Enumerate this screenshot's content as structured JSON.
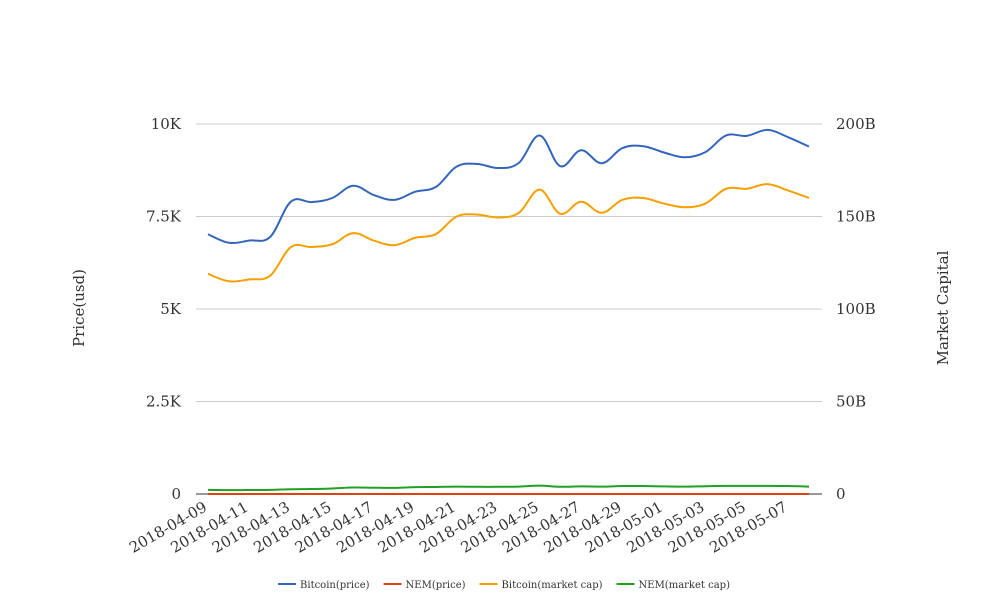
{
  "chart_data": {
    "type": "line",
    "title": "",
    "ylabel_left": "Price(usd)",
    "ylabel_right": "Market Capital",
    "y_left": {
      "ticks": [
        "0",
        "2.5K",
        "5K",
        "7.5K",
        "10K"
      ],
      "range": [
        0,
        10000
      ]
    },
    "y_right": {
      "ticks": [
        "0",
        "50B",
        "100B",
        "150B",
        "200B"
      ],
      "range": [
        0,
        200000000000
      ]
    },
    "x_tick_labels": [
      "2018-04-09",
      "2018-04-11",
      "2018-04-13",
      "2018-04-15",
      "2018-04-17",
      "2018-04-19",
      "2018-04-21",
      "2018-04-23",
      "2018-04-25",
      "2018-04-27",
      "2018-04-29",
      "2018-05-01",
      "2018-05-03",
      "2018-05-05",
      "2018-05-07"
    ],
    "x": [
      "2018-04-09",
      "2018-04-10",
      "2018-04-11",
      "2018-04-12",
      "2018-04-13",
      "2018-04-14",
      "2018-04-15",
      "2018-04-16",
      "2018-04-17",
      "2018-04-18",
      "2018-04-19",
      "2018-04-20",
      "2018-04-21",
      "2018-04-22",
      "2018-04-23",
      "2018-04-24",
      "2018-04-25",
      "2018-04-26",
      "2018-04-27",
      "2018-04-28",
      "2018-04-29",
      "2018-04-30",
      "2018-05-01",
      "2018-05-02",
      "2018-05-03",
      "2018-05-04",
      "2018-05-05",
      "2018-05-06",
      "2018-05-07",
      "2018-05-08"
    ],
    "grid": true,
    "legend_position": "bottom",
    "series": [
      {
        "name": "Bitcoin(price)",
        "axis": "left",
        "color": "#3366bb",
        "values": [
          7020,
          6790,
          6850,
          6950,
          7900,
          7890,
          8000,
          8330,
          8080,
          7950,
          8170,
          8300,
          8850,
          8920,
          8810,
          8950,
          9690,
          8860,
          9290,
          8940,
          9350,
          9400,
          9230,
          9100,
          9240,
          9690,
          9680,
          9840,
          9640,
          9390
        ]
      },
      {
        "name": "NEM(price)",
        "axis": "left",
        "color": "#dd4411",
        "values": [
          0.21,
          0.21,
          0.21,
          0.22,
          0.24,
          0.24,
          0.25,
          0.28,
          0.28,
          0.28,
          0.3,
          0.31,
          0.33,
          0.32,
          0.32,
          0.33,
          0.36,
          0.33,
          0.34,
          0.33,
          0.35,
          0.35,
          0.34,
          0.34,
          0.35,
          0.36,
          0.36,
          0.36,
          0.35,
          0.33
        ]
      },
      {
        "name": "Bitcoin(market cap)",
        "axis": "right",
        "color": "#f5a000",
        "values": [
          119000000000,
          115000000000,
          116000000000,
          118000000000,
          133500000000,
          133500000000,
          135000000000,
          141000000000,
          137000000000,
          134500000000,
          138500000000,
          140500000000,
          150000000000,
          151000000000,
          149500000000,
          152000000000,
          164500000000,
          151500000000,
          158000000000,
          152000000000,
          159000000000,
          160000000000,
          157000000000,
          155000000000,
          157000000000,
          165000000000,
          165000000000,
          167500000000,
          164000000000,
          160000000000
        ]
      },
      {
        "name": "NEM(market cap)",
        "axis": "right",
        "color": "#22a022",
        "values": [
          2200000000,
          2100000000,
          2150000000,
          2200000000,
          2600000000,
          2700000000,
          3000000000,
          3500000000,
          3400000000,
          3300000000,
          3700000000,
          3800000000,
          4000000000,
          3900000000,
          3900000000,
          4000000000,
          4500000000,
          3900000000,
          4100000000,
          4000000000,
          4300000000,
          4300000000,
          4100000000,
          4000000000,
          4200000000,
          4400000000,
          4400000000,
          4400000000,
          4300000000,
          4000000000
        ]
      }
    ]
  }
}
